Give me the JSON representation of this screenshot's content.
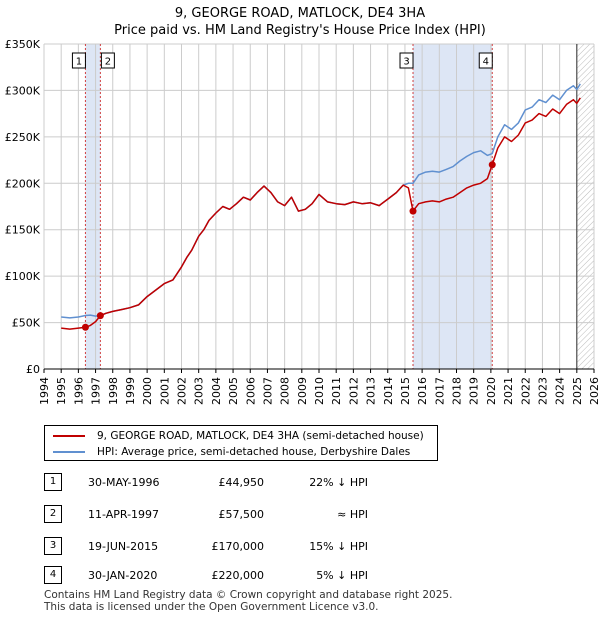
{
  "header": {
    "title_line1": "9, GEORGE ROAD, MATLOCK, DE4 3HA",
    "title_line2": "Price paid vs. HM Land Registry's House Price Index (HPI)"
  },
  "legend": {
    "property_label": "9, GEORGE ROAD, MATLOCK, DE4 3HA (semi-detached house)",
    "hpi_label": "HPI: Average price, semi-detached house, Derbyshire Dales"
  },
  "sales": [
    {
      "num": "1",
      "date": "30-MAY-1996",
      "price": "£44,950",
      "rel": "22% ↓ HPI"
    },
    {
      "num": "2",
      "date": "11-APR-1997",
      "price": "£57,500",
      "rel": "≈ HPI"
    },
    {
      "num": "3",
      "date": "19-JUN-2015",
      "price": "£170,000",
      "rel": "15% ↓ HPI"
    },
    {
      "num": "4",
      "date": "30-JAN-2020",
      "price": "£220,000",
      "rel": "5% ↓ HPI"
    }
  ],
  "footer": {
    "line1": "Contains HM Land Registry data © Crown copyright and database right 2025.",
    "line2": "This data is licensed under the Open Government Licence v3.0."
  },
  "colors": {
    "property": "#c00000",
    "hpi": "#6090d0",
    "shade": "#dde6f5",
    "grid": "#cccccc"
  },
  "chart_data": {
    "type": "line",
    "title": "9, GEORGE ROAD, MATLOCK, DE4 3HA",
    "subtitle": "Price paid vs. HM Land Registry's House Price Index (HPI)",
    "xlabel": "",
    "ylabel": "",
    "xlim": [
      1994,
      2026
    ],
    "ylim": [
      0,
      350000
    ],
    "x_ticks": [
      1994,
      1995,
      1996,
      1997,
      1998,
      1999,
      2000,
      2001,
      2002,
      2003,
      2004,
      2005,
      2006,
      2007,
      2008,
      2009,
      2010,
      2011,
      2012,
      2013,
      2014,
      2015,
      2016,
      2017,
      2018,
      2019,
      2020,
      2021,
      2022,
      2023,
      2024,
      2025,
      2026
    ],
    "x_tick_labels": [
      "1994",
      "1995",
      "1996",
      "1997",
      "1998",
      "1999",
      "2000",
      "2001",
      "2002",
      "2003",
      "2004",
      "2005",
      "2006",
      "2007",
      "2008",
      "2009",
      "2010",
      "2011",
      "2012",
      "2013",
      "2014",
      "2015",
      "2016",
      "2017",
      "2018",
      "2019",
      "2020",
      "2021",
      "2022",
      "2023",
      "2024",
      "2025",
      "2026"
    ],
    "y_ticks": [
      0,
      50000,
      100000,
      150000,
      200000,
      250000,
      300000,
      350000
    ],
    "y_tick_labels": [
      "£0",
      "£50K",
      "£100K",
      "£150K",
      "£200K",
      "£250K",
      "£300K",
      "£350K"
    ],
    "grid": true,
    "series": [
      {
        "name": "9, GEORGE ROAD, MATLOCK, DE4 3HA (semi-detached house)",
        "x": [
          1995.0,
          1995.5,
          1996.0,
          1996.41,
          1996.7,
          1997.0,
          1997.28,
          1997.6,
          1998.0,
          1998.5,
          1999.0,
          1999.5,
          2000.0,
          2000.5,
          2001.0,
          2001.5,
          2002.0,
          2002.3,
          2002.6,
          2003.0,
          2003.3,
          2003.6,
          2004.0,
          2004.4,
          2004.8,
          2005.2,
          2005.6,
          2006.0,
          2006.4,
          2006.8,
          2007.2,
          2007.6,
          2008.0,
          2008.4,
          2008.8,
          2009.2,
          2009.6,
          2010.0,
          2010.5,
          2011.0,
          2011.5,
          2012.0,
          2012.5,
          2013.0,
          2013.5,
          2014.0,
          2014.5,
          2014.9,
          2015.2,
          2015.47,
          2015.8,
          2016.2,
          2016.6,
          2017.0,
          2017.4,
          2017.8,
          2018.2,
          2018.6,
          2019.0,
          2019.4,
          2019.8,
          2020.08,
          2020.4,
          2020.8,
          2021.2,
          2021.6,
          2022.0,
          2022.4,
          2022.8,
          2023.2,
          2023.6,
          2024.0,
          2024.4,
          2024.8,
          2025.0,
          2025.2
        ],
        "y": [
          44000,
          43000,
          44000,
          44950,
          47000,
          51000,
          57500,
          60000,
          62000,
          64000,
          66000,
          69000,
          78000,
          85000,
          92000,
          96000,
          110000,
          120000,
          128000,
          143000,
          150000,
          160000,
          168000,
          175000,
          172000,
          178000,
          185000,
          182000,
          190000,
          197000,
          190000,
          180000,
          176000,
          185000,
          170000,
          172000,
          178000,
          188000,
          180000,
          178000,
          177000,
          180000,
          178000,
          179000,
          176000,
          183000,
          190000,
          198000,
          195000,
          170000,
          178000,
          180000,
          181000,
          180000,
          183000,
          185000,
          190000,
          195000,
          198000,
          200000,
          205000,
          220000,
          238000,
          250000,
          245000,
          252000,
          265000,
          268000,
          275000,
          272000,
          280000,
          275000,
          285000,
          290000,
          286000,
          292000
        ]
      },
      {
        "name": "HPI: Average price, semi-detached house, Derbyshire Dales",
        "x": [
          1995.0,
          1995.5,
          1996.0,
          1996.41,
          1996.7,
          1997.0,
          1997.28,
          1997.6,
          1998.0,
          1998.5,
          1999.0,
          1999.5,
          2000.0,
          2000.5,
          2001.0,
          2001.5,
          2002.0,
          2002.3,
          2002.6,
          2003.0,
          2003.3,
          2003.6,
          2004.0,
          2004.4,
          2004.8,
          2005.2,
          2005.6,
          2006.0,
          2006.4,
          2006.8,
          2007.2,
          2007.6,
          2008.0,
          2008.4,
          2008.8,
          2009.2,
          2009.6,
          2010.0,
          2010.5,
          2011.0,
          2011.5,
          2012.0,
          2012.5,
          2013.0,
          2013.5,
          2014.0,
          2014.5,
          2014.9,
          2015.2,
          2015.47,
          2015.8,
          2016.2,
          2016.6,
          2017.0,
          2017.4,
          2017.8,
          2018.2,
          2018.6,
          2019.0,
          2019.4,
          2019.8,
          2020.08,
          2020.4,
          2020.8,
          2021.2,
          2021.6,
          2022.0,
          2022.4,
          2022.8,
          2023.2,
          2023.6,
          2024.0,
          2024.4,
          2024.8,
          2025.0,
          2025.2
        ],
        "y": [
          56000,
          55000,
          56000,
          57600,
          58000,
          57000,
          57500,
          60000,
          62000,
          64000,
          66000,
          69000,
          78000,
          85000,
          92000,
          96000,
          110000,
          120000,
          128000,
          143000,
          150000,
          160000,
          168000,
          175000,
          172000,
          178000,
          185000,
          182000,
          190000,
          197000,
          190000,
          180000,
          176000,
          185000,
          170000,
          172000,
          178000,
          188000,
          180000,
          178000,
          177000,
          180000,
          178000,
          179000,
          176000,
          183000,
          190000,
          198000,
          200000,
          200000,
          209000,
          212000,
          213000,
          212000,
          215000,
          218000,
          224000,
          229000,
          233000,
          235000,
          230000,
          232000,
          250000,
          263000,
          258000,
          265000,
          279000,
          282000,
          290000,
          287000,
          295000,
          290000,
          300000,
          305000,
          301000,
          307000
        ]
      }
    ],
    "sales": [
      {
        "label": "1",
        "x": 1996.41,
        "y": 44950
      },
      {
        "label": "2",
        "x": 1997.28,
        "y": 57500
      },
      {
        "label": "3",
        "x": 2015.47,
        "y": 170000
      },
      {
        "label": "4",
        "x": 2020.08,
        "y": 220000
      }
    ]
  }
}
